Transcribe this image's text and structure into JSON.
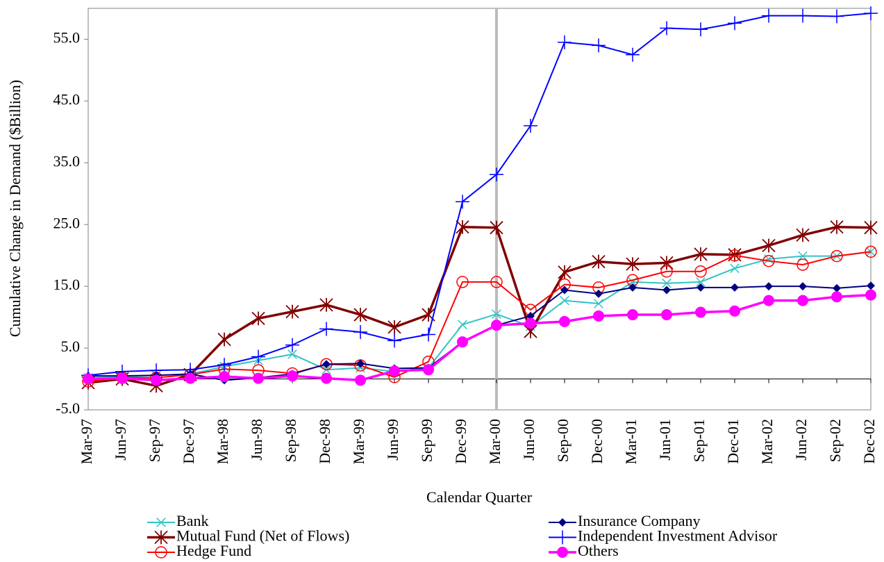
{
  "chart_data": {
    "type": "line",
    "x_label": "Calendar Quarter",
    "y_label": "Cumulative Change in Demand ($Billion)",
    "categories": [
      "Mar-97",
      "Jun-97",
      "Sep-97",
      "Dec-97",
      "Mar-98",
      "Jun-98",
      "Sep-98",
      "Dec-98",
      "Mar-99",
      "Jun-99",
      "Sep-99",
      "Dec-99",
      "Mar-00",
      "Jun-00",
      "Sep-00",
      "Dec-00",
      "Mar-01",
      "Jun-01",
      "Sep-01",
      "Dec-01",
      "Mar-02",
      "Jun-02",
      "Sep-02",
      "Dec-02"
    ],
    "reference_line": "Mar-00",
    "ylim": [
      -5,
      60
    ],
    "yticks": [
      {
        "value": -5,
        "label": "-5.0"
      },
      {
        "value": 5,
        "label": "5.0"
      },
      {
        "value": 15,
        "label": "15.0"
      },
      {
        "value": 25,
        "label": "25.0"
      },
      {
        "value": 35,
        "label": "35.0"
      },
      {
        "value": 45,
        "label": "45.0"
      },
      {
        "value": 55,
        "label": "55.0"
      }
    ],
    "legend": "bottom",
    "series": [
      {
        "name": "Bank",
        "color": "#33c3c3",
        "marker": "x",
        "values": [
          0.2,
          0.3,
          0.6,
          0.8,
          2.0,
          3.0,
          4.0,
          1.5,
          1.8,
          1.2,
          1.8,
          8.8,
          10.5,
          8.5,
          12.7,
          12.2,
          15.7,
          15.5,
          15.7,
          17.9,
          19.4,
          19.9,
          19.9,
          20.6
        ]
      },
      {
        "name": "Mutual Fund (Net of Flows)",
        "color": "#7f0000",
        "marker": "star",
        "values": [
          -0.6,
          0.0,
          -1.1,
          0.7,
          6.4,
          9.8,
          10.9,
          12.0,
          10.4,
          8.4,
          10.4,
          24.6,
          24.5,
          7.7,
          17.3,
          19.0,
          18.6,
          18.8,
          20.2,
          20.1,
          21.6,
          23.3,
          24.6,
          24.5
        ]
      },
      {
        "name": "Hedge Fund",
        "color": "#ff0000",
        "marker": "circle-open",
        "values": [
          -0.4,
          0.2,
          0.2,
          0.7,
          1.6,
          1.4,
          0.9,
          2.4,
          2.2,
          0.3,
          2.8,
          15.7,
          15.7,
          11.2,
          15.3,
          14.8,
          16.0,
          17.4,
          17.4,
          20.0,
          19.1,
          18.5,
          19.9,
          20.6
        ]
      },
      {
        "name": "Insurance Company",
        "color": "#000080",
        "marker": "diamond",
        "values": [
          0.5,
          0.5,
          0.6,
          0.8,
          -0.2,
          0.2,
          0.8,
          2.4,
          2.5,
          1.7,
          1.8,
          6.0,
          8.7,
          10.2,
          14.4,
          13.8,
          14.8,
          14.4,
          14.8,
          14.8,
          15.0,
          15.0,
          14.7,
          15.1
        ]
      },
      {
        "name": "Independent Investment Advisor",
        "color": "#0000ff",
        "marker": "plus",
        "values": [
          0.6,
          1.2,
          1.4,
          1.5,
          2.3,
          3.6,
          5.5,
          8.1,
          7.6,
          6.2,
          7.2,
          28.7,
          33.1,
          41.0,
          54.5,
          54.0,
          52.5,
          56.8,
          56.6,
          57.6,
          58.8,
          58.8,
          58.7,
          59.2
        ]
      },
      {
        "name": "Others",
        "color": "#ff00ff",
        "marker": "circle-filled",
        "values": [
          0.0,
          0.1,
          -0.2,
          0.1,
          0.4,
          0.1,
          0.5,
          0.1,
          -0.2,
          1.3,
          1.5,
          6.0,
          8.7,
          9.0,
          9.3,
          10.2,
          10.4,
          10.4,
          10.8,
          11.0,
          12.7,
          12.7,
          13.3,
          13.6
        ]
      }
    ]
  }
}
